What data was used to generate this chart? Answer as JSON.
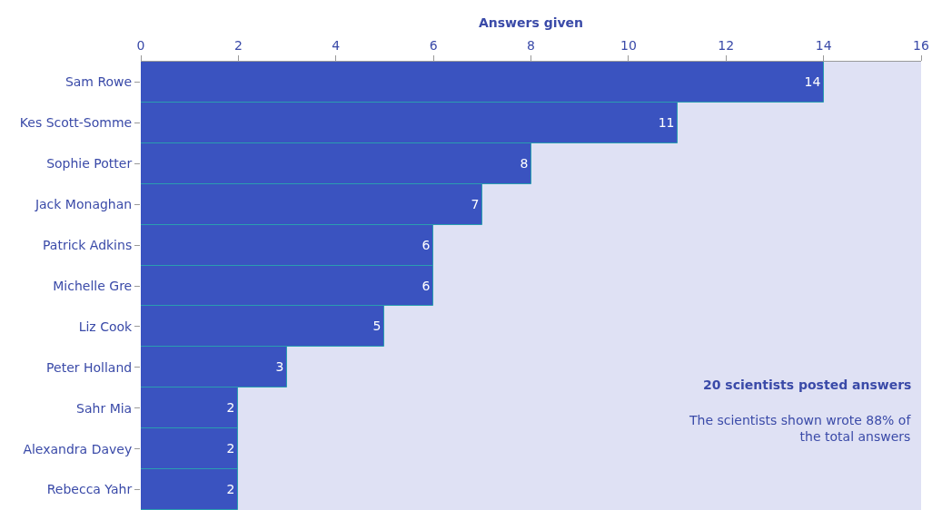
{
  "chart_data": {
    "type": "bar",
    "orientation": "horizontal",
    "xlabel": "Answers given",
    "categories": [
      "Sam Rowe",
      "Kes Scott-Somme",
      "Sophie Potter",
      "Jack Monaghan",
      "Patrick Adkins",
      "Michelle Gre",
      "Liz Cook",
      "Peter Holland",
      "Sahr Mia",
      "Alexandra Davey",
      "Rebecca Yahr"
    ],
    "values": [
      14,
      11,
      8,
      7,
      6,
      6,
      5,
      3,
      2,
      2,
      2
    ],
    "color": "#3a53c0",
    "data_labels": true,
    "xlim": [
      0,
      16
    ],
    "xticks": [
      0,
      2,
      4,
      6,
      8,
      10,
      12,
      14,
      16
    ],
    "grid": false,
    "legend": false,
    "annotations": [
      "20 scientists posted answers",
      "The scientists shown wrote 88% of the total answers"
    ]
  }
}
